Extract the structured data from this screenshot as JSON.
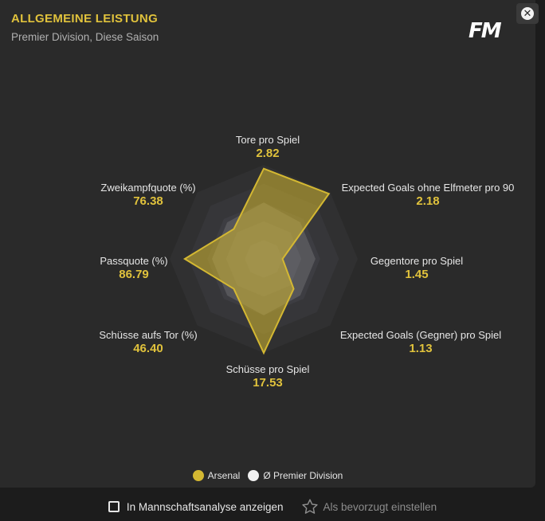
{
  "header": {
    "title": "ALLGEMEINE LEISTUNG",
    "subtitle": "Premier Division, Diese Saison",
    "logo_text": "FM",
    "close_icon": "close-icon"
  },
  "chart_data": {
    "type": "radar",
    "axes": [
      {
        "label": "Tore pro Spiel",
        "value": "2.82"
      },
      {
        "label": "Expected Goals ohne Elfmeter pro 90",
        "value": "2.18"
      },
      {
        "label": "Gegentore pro Spiel",
        "value": "1.45"
      },
      {
        "label": "Expected Goals (Gegner) pro Spiel",
        "value": "1.13"
      },
      {
        "label": "Schüsse pro Spiel",
        "value": "17.53"
      },
      {
        "label": "Schüsse aufs Tor (%)",
        "value": "46.40"
      },
      {
        "label": "Passquote (%)",
        "value": "86.79"
      },
      {
        "label": "Zweikampfquote (%)",
        "value": "76.38"
      }
    ],
    "series": [
      {
        "name": "Arsenal",
        "color": "#d4b832",
        "scores": [
          0.96,
          0.98,
          0.2,
          0.45,
          1.0,
          0.45,
          0.84,
          0.45
        ]
      },
      {
        "name": "Ø Premier Division",
        "color": "#f0f0f0",
        "scores": [
          0.6,
          0.55,
          0.55,
          0.55,
          0.6,
          0.55,
          0.55,
          0.55
        ]
      }
    ]
  },
  "legend": {
    "series1": "Arsenal",
    "series2": "Ø Premier Division",
    "series1_color": "#d4b832",
    "series2_color": "#f2f2f2"
  },
  "footer": {
    "checkbox_label": "In Mannschaftsanalyse anzeigen",
    "checkbox_checked": false,
    "favorite_label": "Als bevorzugt einstellen",
    "favorite_icon": "star-icon"
  }
}
